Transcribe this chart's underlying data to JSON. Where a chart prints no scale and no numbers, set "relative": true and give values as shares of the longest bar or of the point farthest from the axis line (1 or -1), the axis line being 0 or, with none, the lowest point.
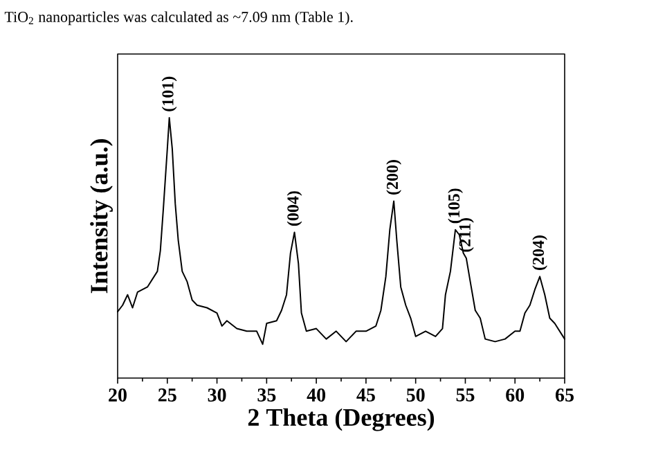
{
  "chart_data": {
    "type": "line",
    "relative": true,
    "xlabel": "2 Theta (Degrees)",
    "ylabel": "Intensity (a.u.)",
    "xlim": [
      20,
      65
    ],
    "xticks": [
      20,
      25,
      30,
      35,
      40,
      45,
      50,
      55,
      60,
      65
    ],
    "tick_labels": "x",
    "x": [
      20,
      20.5,
      21,
      21.5,
      22,
      22.5,
      23,
      23.5,
      24,
      24.3,
      24.6,
      25,
      25.2,
      25.5,
      25.8,
      26.1,
      26.5,
      27,
      27.5,
      28,
      29,
      30,
      30.5,
      31,
      32,
      33,
      34,
      34.6,
      35,
      36,
      36.5,
      37,
      37.4,
      37.8,
      38.2,
      38.5,
      39,
      40,
      41,
      42,
      43,
      44,
      45,
      46,
      46.5,
      47,
      47.4,
      47.8,
      48.1,
      48.5,
      49,
      49.5,
      50,
      51,
      52,
      52.7,
      53,
      53.5,
      54,
      54.4,
      54.8,
      55.1,
      55.5,
      56,
      56.5,
      57,
      58,
      59,
      60,
      60.5,
      61,
      61.5,
      62,
      62.5,
      63,
      63.5,
      64,
      64.5,
      65
    ],
    "series": [
      {
        "color": "#000000",
        "values": [
          0.255,
          0.28,
          0.32,
          0.27,
          0.33,
          0.34,
          0.35,
          0.38,
          0.41,
          0.49,
          0.65,
          0.88,
          1.0,
          0.88,
          0.67,
          0.53,
          0.41,
          0.37,
          0.3,
          0.28,
          0.27,
          0.25,
          0.2,
          0.22,
          0.19,
          0.18,
          0.18,
          0.13,
          0.21,
          0.22,
          0.26,
          0.32,
          0.48,
          0.56,
          0.44,
          0.25,
          0.18,
          0.19,
          0.15,
          0.18,
          0.14,
          0.18,
          0.18,
          0.2,
          0.26,
          0.39,
          0.57,
          0.68,
          0.53,
          0.35,
          0.28,
          0.23,
          0.16,
          0.18,
          0.16,
          0.19,
          0.32,
          0.41,
          0.57,
          0.55,
          0.48,
          0.46,
          0.37,
          0.26,
          0.23,
          0.15,
          0.14,
          0.15,
          0.18,
          0.18,
          0.25,
          0.28,
          0.34,
          0.39,
          0.32,
          0.23,
          0.21,
          0.18,
          0.15
        ]
      }
    ],
    "annotations": [
      {
        "text": "(101)",
        "x": 25.2,
        "y": 1.0
      },
      {
        "text": "(004)",
        "x": 37.8,
        "y": 0.56
      },
      {
        "text": "(200)",
        "x": 47.8,
        "y": 0.68
      },
      {
        "text": "(105)",
        "x": 54.0,
        "y": 0.57
      },
      {
        "text": "(211)",
        "x": 55.1,
        "y": 0.46
      },
      {
        "text": "(204)",
        "x": 62.5,
        "y": 0.39
      },
      "TiO$_{2}$ nanoparticles was calculated as ~7.09 nm (Table 1)."
    ]
  }
}
